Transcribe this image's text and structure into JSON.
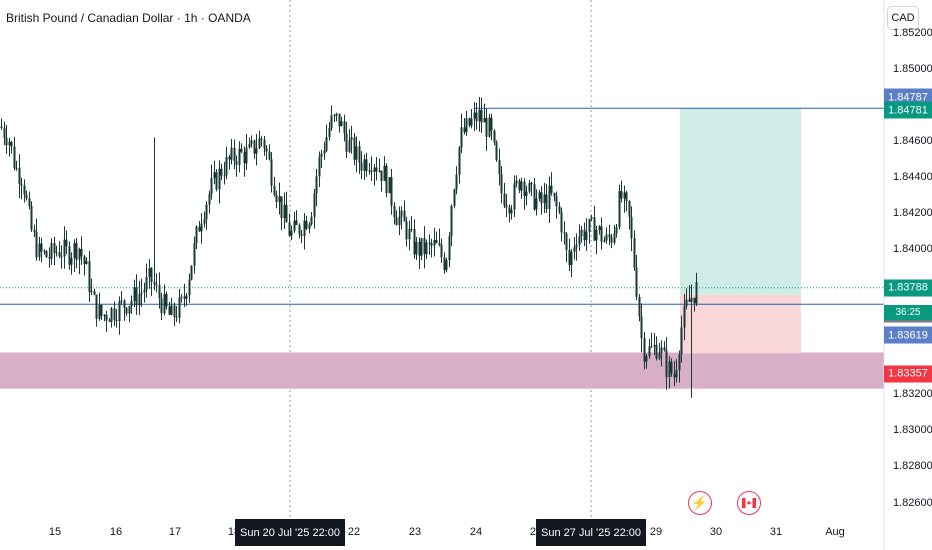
{
  "header": {
    "symbol_title": "British Pound / Canadian Dollar · 1h · OANDA",
    "currency_button": "CAD"
  },
  "chart_data": {
    "type": "candlestick",
    "title": "British Pound / Canadian Dollar · 1h · OANDA",
    "ylim": [
      1.8252,
      1.8538
    ],
    "y_ticks": [
      "1.85200",
      "1.85000",
      "1.84600",
      "1.84400",
      "1.84200",
      "1.84000",
      "1.83200",
      "1.83000",
      "1.82800",
      "1.82600"
    ],
    "x_ticks": [
      "15",
      "16",
      "17",
      "18",
      "22",
      "23",
      "24",
      "25",
      "29",
      "30",
      "31",
      "Aug"
    ],
    "date_flags": [
      "Sun 20 Jul '25   22:00",
      "Sun 27 Jul '25   22:00"
    ],
    "price_path": [
      [
        0,
        1.8468
      ],
      [
        8,
        1.8462
      ],
      [
        15,
        1.8445
      ],
      [
        22,
        1.844
      ],
      [
        30,
        1.8412
      ],
      [
        38,
        1.8398
      ],
      [
        48,
        1.8396
      ],
      [
        58,
        1.84
      ],
      [
        68,
        1.8398
      ],
      [
        78,
        1.8402
      ],
      [
        86,
        1.8388
      ],
      [
        92,
        1.8372
      ],
      [
        100,
        1.8363
      ],
      [
        112,
        1.8366
      ],
      [
        125,
        1.837
      ],
      [
        140,
        1.8376
      ],
      [
        150,
        1.8384
      ],
      [
        160,
        1.8372
      ],
      [
        170,
        1.8362
      ],
      [
        182,
        1.837
      ],
      [
        192,
        1.8396
      ],
      [
        200,
        1.8418
      ],
      [
        210,
        1.8433
      ],
      [
        222,
        1.8445
      ],
      [
        235,
        1.8452
      ],
      [
        248,
        1.8453
      ],
      [
        262,
        1.8462
      ],
      [
        272,
        1.844
      ],
      [
        282,
        1.842
      ],
      [
        290,
        1.8408
      ],
      [
        300,
        1.8413
      ],
      [
        310,
        1.842
      ],
      [
        318,
        1.8448
      ],
      [
        330,
        1.847
      ],
      [
        338,
        1.8472
      ],
      [
        348,
        1.8458
      ],
      [
        360,
        1.8448
      ],
      [
        372,
        1.845
      ],
      [
        385,
        1.844
      ],
      [
        395,
        1.842
      ],
      [
        405,
        1.8412
      ],
      [
        415,
        1.84
      ],
      [
        425,
        1.84
      ],
      [
        435,
        1.8402
      ],
      [
        445,
        1.8392
      ],
      [
        452,
        1.8432
      ],
      [
        460,
        1.8462
      ],
      [
        470,
        1.847
      ],
      [
        478,
        1.8474
      ],
      [
        490,
        1.8465
      ],
      [
        500,
        1.8432
      ],
      [
        510,
        1.8426
      ],
      [
        520,
        1.844
      ],
      [
        530,
        1.843
      ],
      [
        540,
        1.8425
      ],
      [
        550,
        1.843
      ],
      [
        560,
        1.8418
      ],
      [
        568,
        1.839
      ],
      [
        575,
        1.8408
      ],
      [
        585,
        1.841
      ],
      [
        595,
        1.8412
      ],
      [
        605,
        1.8404
      ],
      [
        612,
        1.8408
      ],
      [
        620,
        1.843
      ],
      [
        628,
        1.8418
      ],
      [
        635,
        1.8385
      ],
      [
        642,
        1.8345
      ],
      [
        650,
        1.8344
      ],
      [
        658,
        1.8347
      ],
      [
        666,
        1.8335
      ],
      [
        674,
        1.833
      ],
      [
        680,
        1.8355
      ],
      [
        686,
        1.8368
      ],
      [
        692,
        1.8375
      ],
      [
        697,
        1.8379
      ]
    ],
    "horizontal_lines": [
      {
        "price": 1.84781,
        "color": "#2a5ea8",
        "style": "solid"
      },
      {
        "price": 1.83697,
        "color": "#2a5ea8",
        "style": "solid"
      },
      {
        "price": 1.83788,
        "color": "#089981",
        "style": "dotted"
      }
    ],
    "zone": {
      "from": 1.8323,
      "to": 1.8343,
      "color": "#d9aec8"
    },
    "position_tool": {
      "entry": 1.8375,
      "target": 1.84781,
      "stop": 1.83425,
      "profit_color": "#cfece6",
      "loss_color": "#f9d6d8"
    },
    "price_tags": [
      {
        "label": "1.84787",
        "price": 1.84787,
        "color": "#5b7fc7"
      },
      {
        "label": "1.84781",
        "price": 1.84781,
        "color": "#089981"
      },
      {
        "label": "1.83788",
        "price": 1.83788,
        "color": "#089981"
      },
      {
        "label": "1.83697",
        "price": 1.83697,
        "color": "#787b86"
      },
      {
        "label": "1.83619",
        "price": 1.83619,
        "color": "#5b7fc7"
      },
      {
        "label": "1.83357",
        "price": 1.83357,
        "color": "#f23645"
      }
    ],
    "countdown": "36:25",
    "candle_color": "#1b3a36"
  },
  "icons": {
    "flash": "lightning-icon",
    "flag": "canada-flag-icon"
  },
  "colors": {
    "grid": "#f0f3fa",
    "accent_blue": "#2a5ea8",
    "up": "#089981",
    "down": "#f23645"
  }
}
